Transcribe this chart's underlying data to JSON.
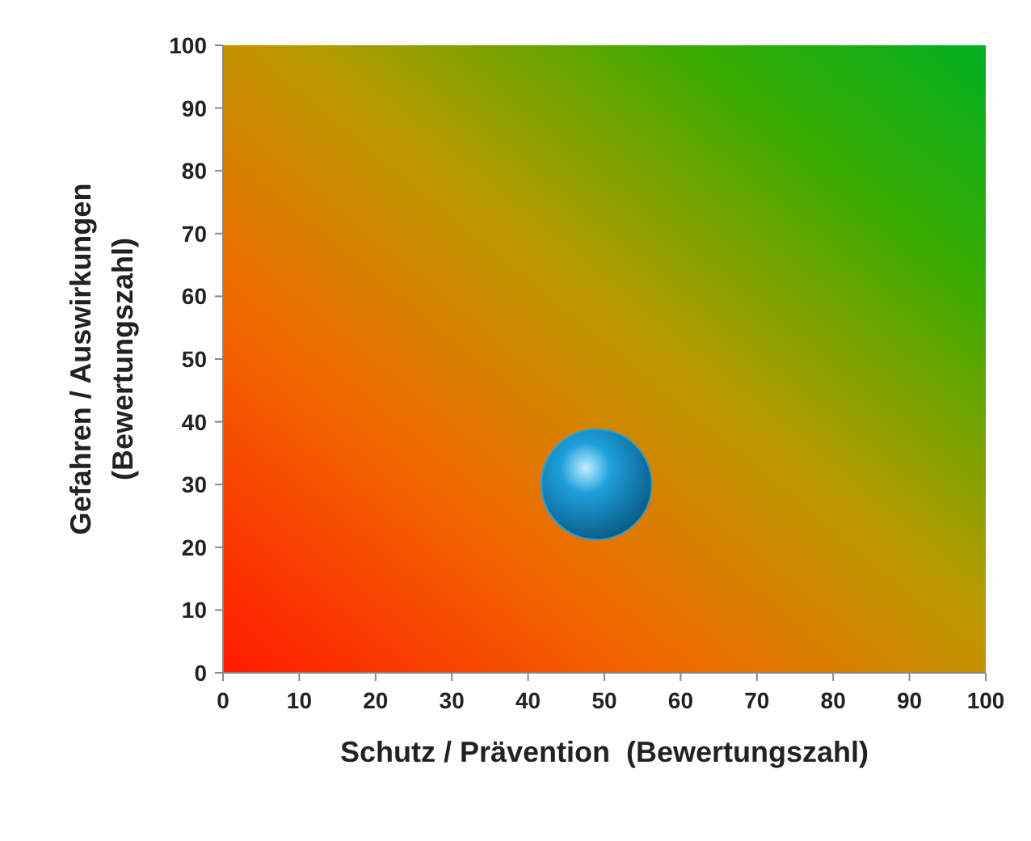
{
  "chart_data": {
    "type": "scatter",
    "xlabel": "Schutz / Prävention  (Bewertungszahl)",
    "ylabel": "Gefahren / Auswirkungen\n(Bewertungszahl)",
    "x": [
      49
    ],
    "series": [
      {
        "color": "#1ea0dc",
        "values": [
          30
        ]
      }
    ],
    "xlim": [
      0,
      100
    ],
    "ylim": [
      0,
      100
    ],
    "xticks": [
      0,
      10,
      20,
      30,
      40,
      50,
      60,
      70,
      80,
      90,
      100
    ],
    "yticks": [
      0,
      10,
      20,
      30,
      40,
      50,
      60,
      70,
      80,
      90,
      100
    ],
    "marker": "circle",
    "grid": false
  }
}
